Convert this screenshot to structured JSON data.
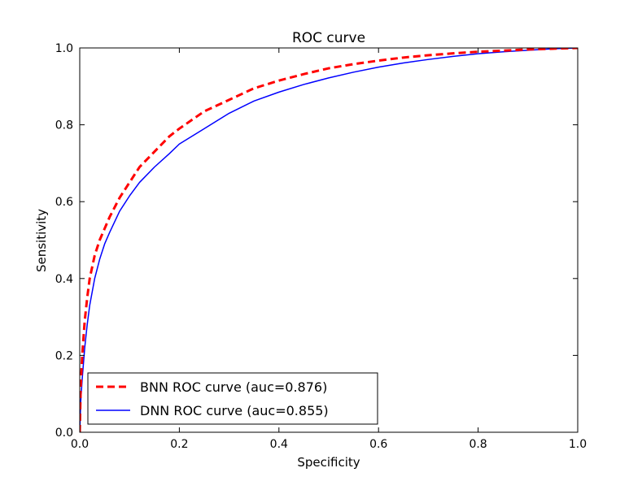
{
  "chart_data": {
    "type": "line",
    "title": "ROC curve",
    "xlabel": "Specificity",
    "ylabel": "Sensitivity",
    "xlim": [
      0.0,
      1.0
    ],
    "ylim": [
      0.0,
      1.0
    ],
    "xticks": [
      "0.0",
      "0.2",
      "0.4",
      "0.6",
      "0.8",
      "1.0"
    ],
    "yticks": [
      "0.0",
      "0.2",
      "0.4",
      "0.6",
      "0.8",
      "1.0"
    ],
    "grid": false,
    "legend_position": "lower-left",
    "series": [
      {
        "name": "BNN ROC curve (auc=0.876)",
        "color": "#ff0000",
        "style": "dashed",
        "x": [
          0.0,
          0.002,
          0.005,
          0.01,
          0.015,
          0.02,
          0.03,
          0.04,
          0.05,
          0.06,
          0.08,
          0.1,
          0.12,
          0.15,
          0.18,
          0.2,
          0.25,
          0.3,
          0.35,
          0.4,
          0.45,
          0.5,
          0.55,
          0.6,
          0.65,
          0.7,
          0.75,
          0.8,
          0.85,
          0.9,
          0.95,
          1.0
        ],
        "y": [
          0.0,
          0.12,
          0.2,
          0.29,
          0.35,
          0.4,
          0.46,
          0.5,
          0.53,
          0.56,
          0.61,
          0.65,
          0.69,
          0.73,
          0.77,
          0.79,
          0.835,
          0.865,
          0.895,
          0.915,
          0.932,
          0.947,
          0.958,
          0.967,
          0.975,
          0.981,
          0.986,
          0.99,
          0.993,
          0.996,
          0.998,
          1.0
        ]
      },
      {
        "name": "DNN ROC curve (auc=0.855)",
        "color": "#0000ff",
        "style": "solid",
        "x": [
          0.0,
          0.002,
          0.005,
          0.01,
          0.015,
          0.02,
          0.03,
          0.04,
          0.05,
          0.06,
          0.08,
          0.1,
          0.12,
          0.15,
          0.18,
          0.2,
          0.25,
          0.3,
          0.35,
          0.4,
          0.45,
          0.5,
          0.55,
          0.6,
          0.65,
          0.7,
          0.75,
          0.8,
          0.85,
          0.9,
          0.95,
          1.0
        ],
        "y": [
          0.0,
          0.08,
          0.14,
          0.22,
          0.28,
          0.33,
          0.4,
          0.45,
          0.49,
          0.52,
          0.575,
          0.615,
          0.65,
          0.69,
          0.725,
          0.75,
          0.79,
          0.83,
          0.862,
          0.885,
          0.905,
          0.922,
          0.937,
          0.95,
          0.961,
          0.97,
          0.978,
          0.985,
          0.99,
          0.994,
          0.998,
          1.0
        ]
      }
    ]
  }
}
